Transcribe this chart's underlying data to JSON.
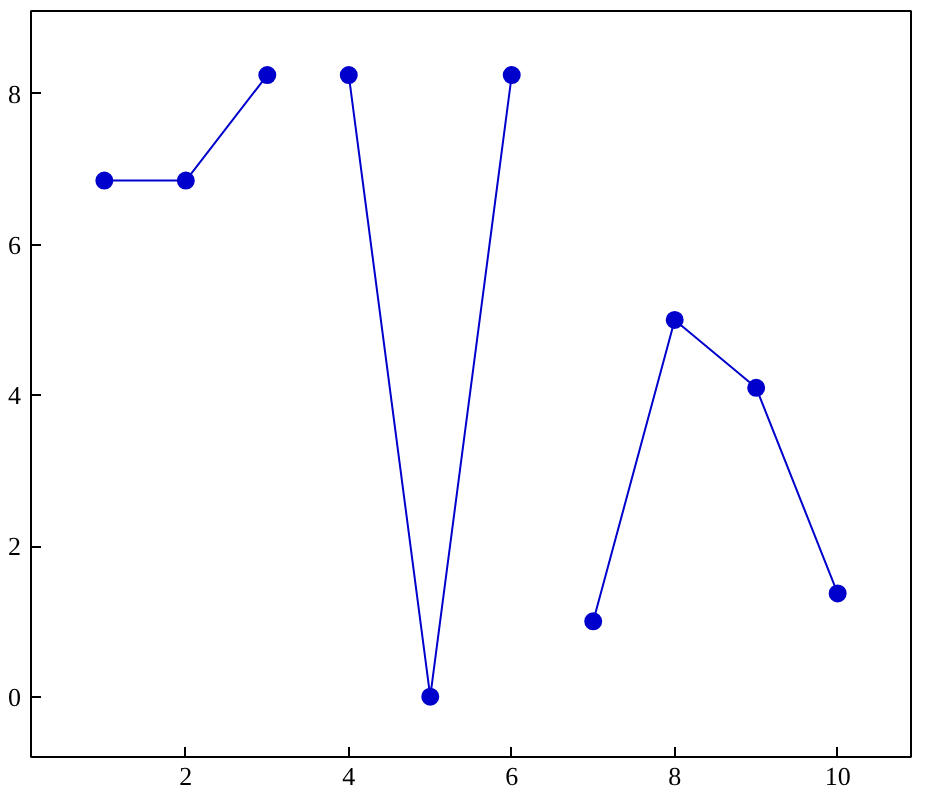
{
  "chart_data": {
    "type": "line",
    "xlim": [
      0.1,
      10.9
    ],
    "ylim": [
      -0.8,
      9.1
    ],
    "xticks": [
      2,
      4,
      6,
      8,
      10
    ],
    "yticks": [
      0,
      2,
      4,
      6,
      8
    ],
    "grid": false,
    "marker": "circle",
    "line_style": "solid",
    "series": [
      {
        "color": "#0000cc",
        "x": [
          1,
          2,
          3
        ],
        "values": [
          6.85,
          6.85,
          8.25
        ]
      },
      {
        "color": "#0000cc",
        "x": [
          4,
          5,
          6
        ],
        "values": [
          8.25,
          0,
          8.25
        ]
      },
      {
        "color": "#0000cc",
        "x": [
          7,
          8,
          9,
          10
        ],
        "values": [
          1,
          5,
          4.1,
          1.37
        ]
      }
    ]
  }
}
